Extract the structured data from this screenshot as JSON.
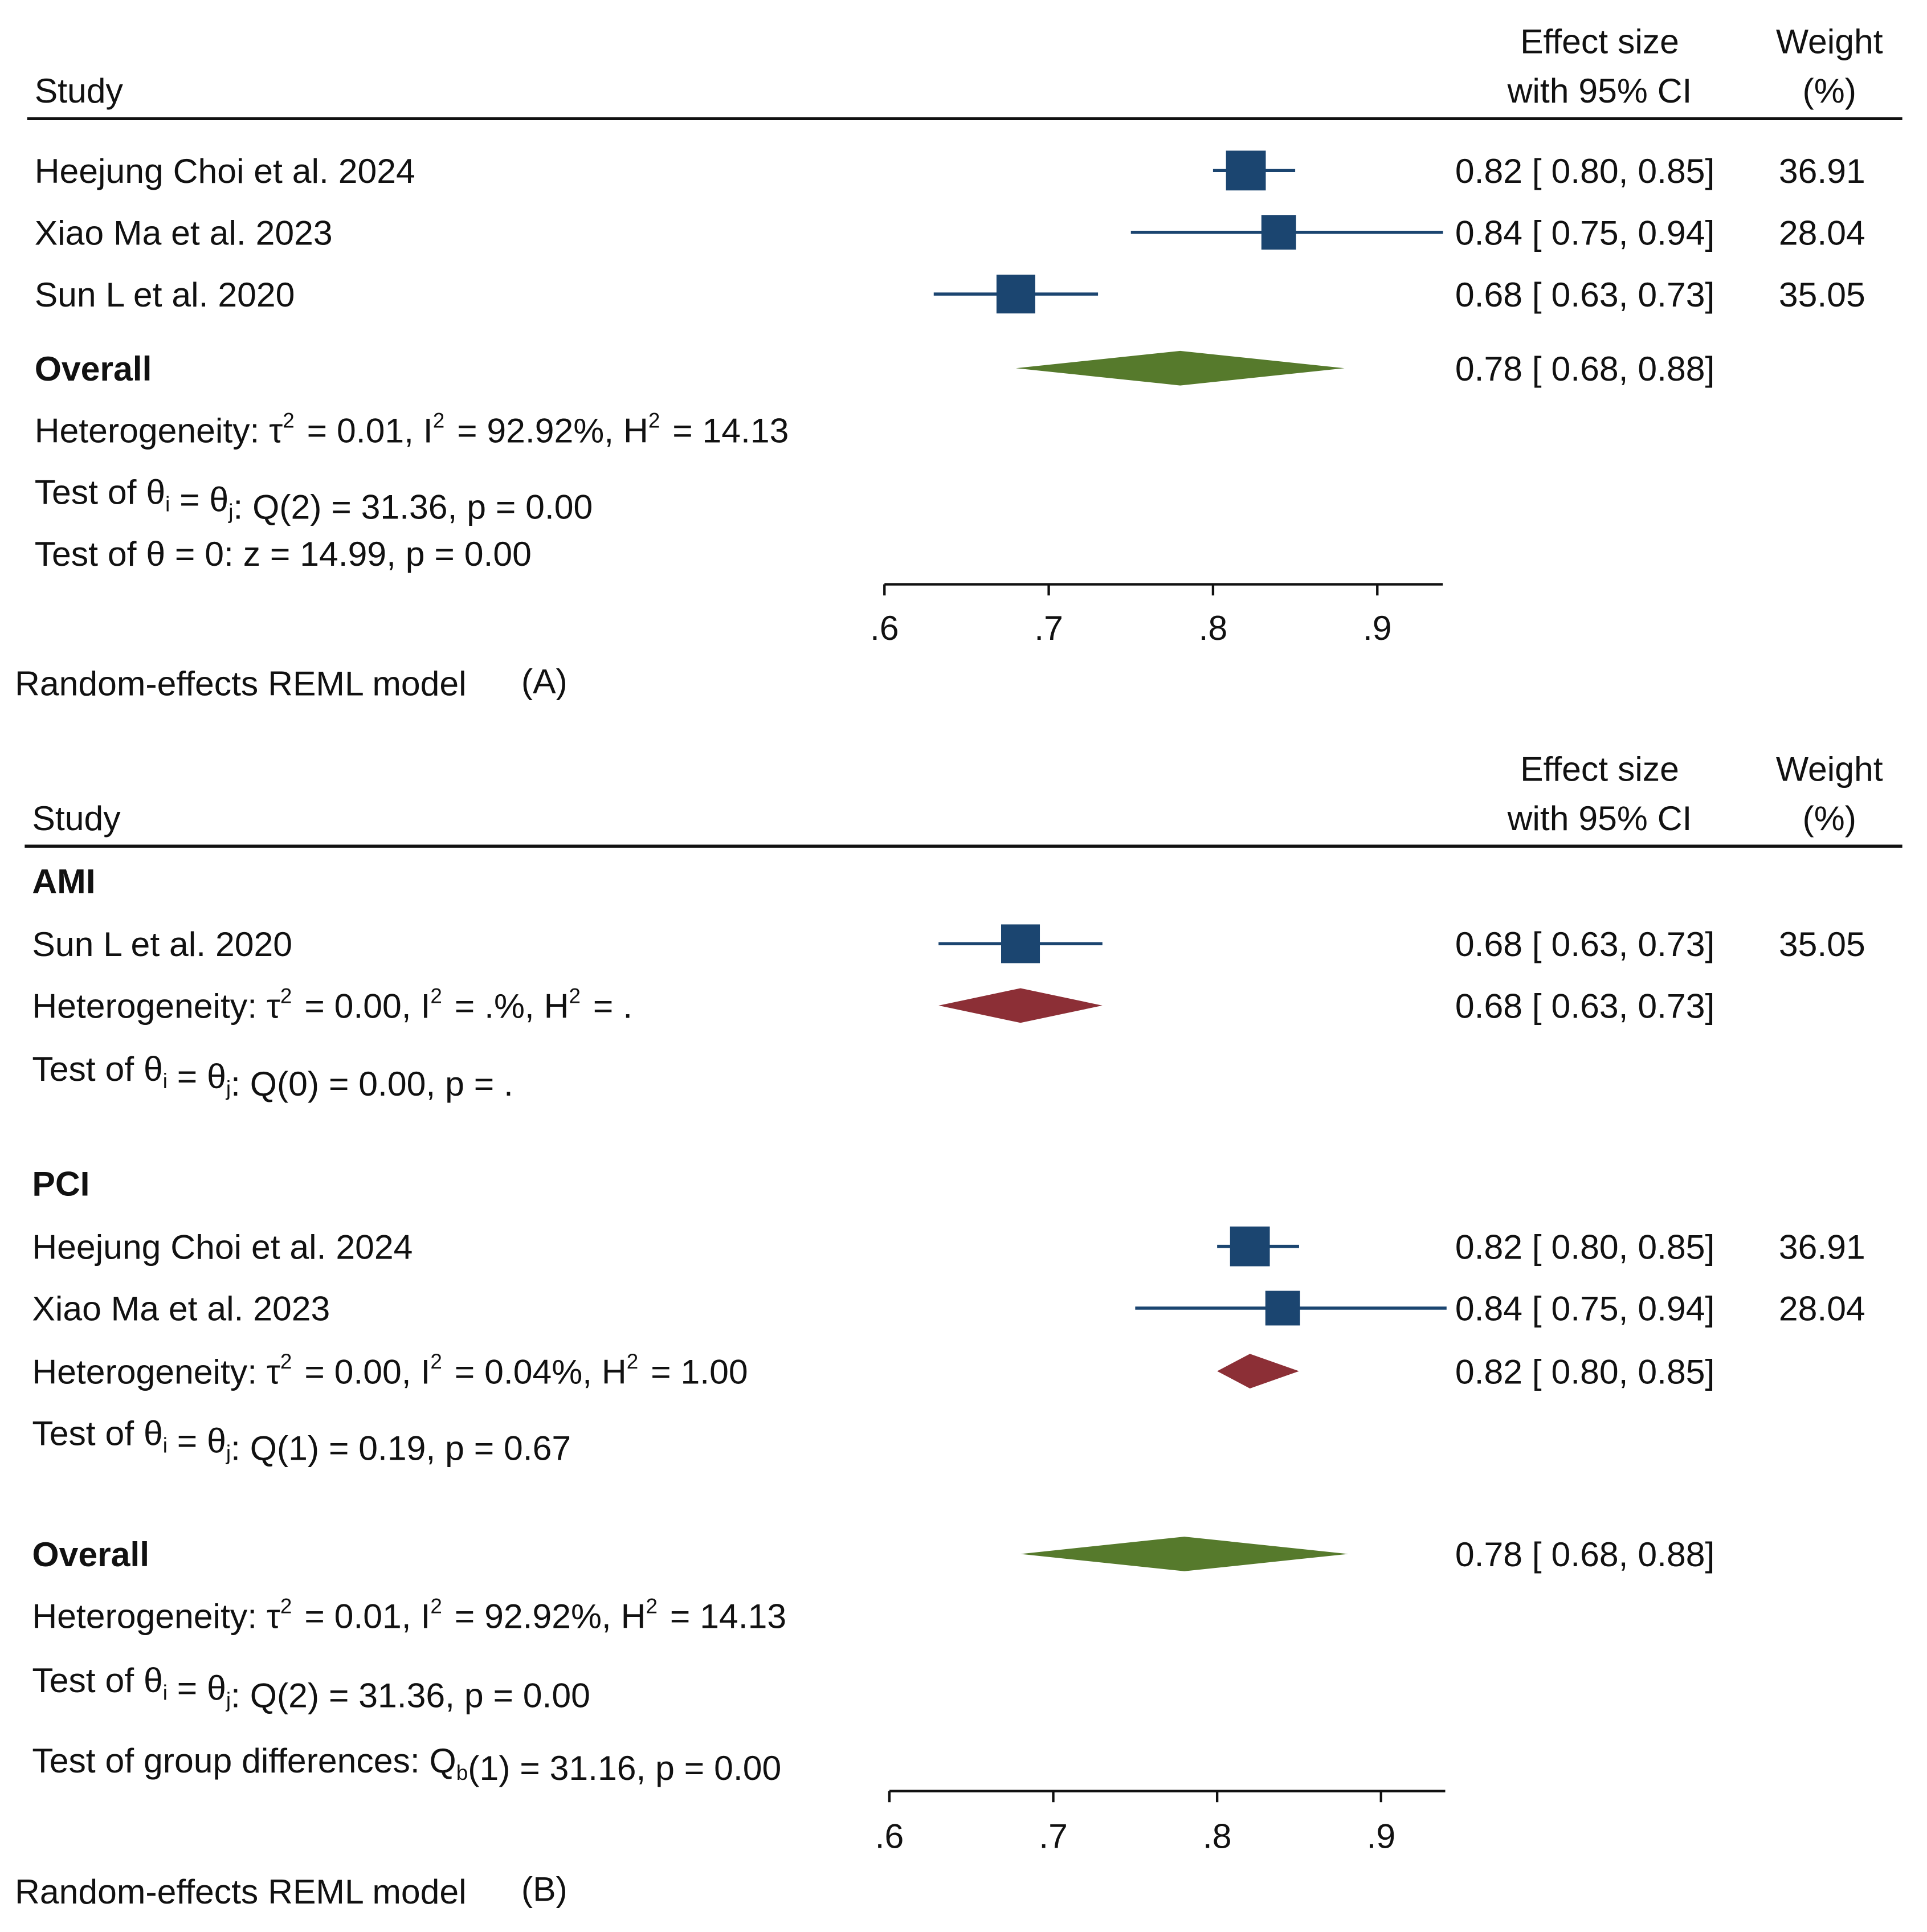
{
  "chart_data": [
    {
      "type": "forest",
      "panel_label": "(A)",
      "footer": "Random-effects REML model",
      "headers": {
        "study": "Study",
        "effect_line1": "Effect size",
        "effect_line2": "with 95% CI",
        "weight_line1": "Weight",
        "weight_line2": "(%)"
      },
      "xlim": [
        0.6,
        0.94
      ],
      "ticks": [
        {
          "v": 0.6,
          "label": ".6"
        },
        {
          "v": 0.7,
          "label": ".7"
        },
        {
          "v": 0.8,
          "label": ".8"
        },
        {
          "v": 0.9,
          "label": ".9"
        }
      ],
      "rows": [
        {
          "kind": "study",
          "label": "Heejung Choi et al. 2024",
          "es": 0.82,
          "lo": 0.8,
          "hi": 0.85,
          "es_text": "0.82 [ 0.80,  0.85]",
          "weight": "36.91"
        },
        {
          "kind": "study",
          "label": "Xiao Ma et al. 2023",
          "es": 0.84,
          "lo": 0.75,
          "hi": 0.94,
          "es_text": "0.84 [ 0.75,  0.94]",
          "weight": "28.04"
        },
        {
          "kind": "study",
          "label": "Sun L et al. 2020",
          "es": 0.68,
          "lo": 0.63,
          "hi": 0.73,
          "es_text": "0.68 [ 0.63,  0.73]",
          "weight": "35.05"
        },
        {
          "kind": "overall",
          "label": "Overall",
          "es": 0.78,
          "lo": 0.68,
          "hi": 0.88,
          "es_text": "0.78 [ 0.68,  0.88]"
        },
        {
          "kind": "text",
          "label": "Heterogeneity: τ^{2} = 0.01, I^{2} = 92.92%, H^{2} = 14.13"
        },
        {
          "kind": "text",
          "label": "Test of θ_{i} = θ_{j}: Q(2) = 31.36, p = 0.00"
        },
        {
          "kind": "text",
          "label": "Test of θ = 0: z = 14.99, p = 0.00"
        }
      ]
    },
    {
      "type": "forest",
      "panel_label": "(B)",
      "footer": "Random-effects REML model",
      "headers": {
        "study": "Study",
        "effect_line1": "Effect size",
        "effect_line2": "with 95% CI",
        "weight_line1": "Weight",
        "weight_line2": "(%)"
      },
      "xlim": [
        0.6,
        0.94
      ],
      "ticks": [
        {
          "v": 0.6,
          "label": ".6"
        },
        {
          "v": 0.7,
          "label": ".7"
        },
        {
          "v": 0.8,
          "label": ".8"
        },
        {
          "v": 0.9,
          "label": ".9"
        }
      ],
      "rows": [
        {
          "kind": "group",
          "label": "AMI"
        },
        {
          "kind": "study",
          "label": "Sun L et al. 2020",
          "es": 0.68,
          "lo": 0.63,
          "hi": 0.73,
          "es_text": "0.68 [ 0.63,  0.73]",
          "weight": "35.05"
        },
        {
          "kind": "subtotal",
          "label": "Heterogeneity: τ^{2} = 0.00, I^{2} = .%, H^{2} = .",
          "es": 0.68,
          "lo": 0.63,
          "hi": 0.73,
          "es_text": "0.68 [ 0.63,  0.73]"
        },
        {
          "kind": "text",
          "label": "Test of θ_{i} = θ_{j}: Q(0) = 0.00, p = ."
        },
        {
          "kind": "group",
          "label": "PCI"
        },
        {
          "kind": "study",
          "label": "Heejung Choi et al. 2024",
          "es": 0.82,
          "lo": 0.8,
          "hi": 0.85,
          "es_text": "0.82 [ 0.80,  0.85]",
          "weight": "36.91"
        },
        {
          "kind": "study",
          "label": "Xiao Ma et al. 2023",
          "es": 0.84,
          "lo": 0.75,
          "hi": 0.94,
          "es_text": "0.84 [ 0.75,  0.94]",
          "weight": "28.04"
        },
        {
          "kind": "subtotal",
          "label": "Heterogeneity: τ^{2} = 0.00, I^{2} = 0.04%, H^{2} = 1.00",
          "es": 0.82,
          "lo": 0.8,
          "hi": 0.85,
          "es_text": "0.82 [ 0.80,  0.85]"
        },
        {
          "kind": "text",
          "label": "Test of θ_{i} = θ_{j}: Q(1) = 0.19, p = 0.67"
        },
        {
          "kind": "overall",
          "label": "Overall",
          "es": 0.78,
          "lo": 0.68,
          "hi": 0.88,
          "es_text": "0.78 [ 0.68,  0.88]"
        },
        {
          "kind": "text",
          "label": "Heterogeneity: τ^{2} = 0.01, I^{2} = 92.92%, H^{2} = 14.13"
        },
        {
          "kind": "text",
          "label": "Test of θ_{i} = θ_{j}: Q(2) = 31.36, p = 0.00"
        },
        {
          "kind": "text",
          "label": "Test of group differences: Q_{b}(1) = 31.16, p = 0.00"
        }
      ]
    }
  ],
  "colors": {
    "study_marker": "#1b4570",
    "overall_diamond": "#567a2c",
    "subgroup_diamond": "#8c2f36",
    "text": "#111111"
  }
}
